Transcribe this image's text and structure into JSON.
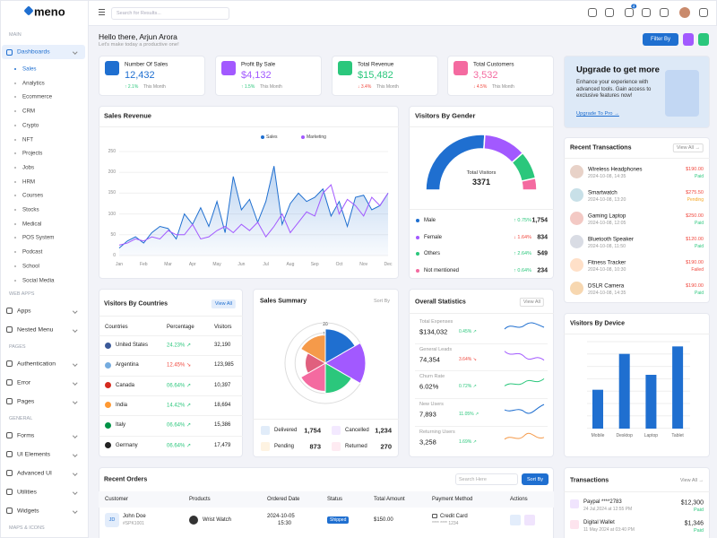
{
  "sidebar": {
    "logo": "meno",
    "groups": [
      {
        "heading": "MAIN",
        "items": [
          "Dashboards"
        ],
        "submenu": [
          "Sales",
          "Analytics",
          "Ecommerce",
          "CRM",
          "Crypto",
          "NFT",
          "Projects",
          "Jobs",
          "HRM",
          "Courses",
          "Stocks",
          "Medical",
          "POS System",
          "Podcast",
          "School",
          "Social Media"
        ]
      },
      {
        "heading": "WEB APPS",
        "items": [
          "Apps",
          "Nested Menu"
        ]
      },
      {
        "heading": "PAGES",
        "items": [
          "Authentication",
          "Error",
          "Pages"
        ]
      },
      {
        "heading": "GENERAL",
        "items": [
          "Forms",
          "UI Elements",
          "Advanced UI",
          "Utilities",
          "Widgets"
        ]
      },
      {
        "heading": "MAPS & ICONS",
        "items": []
      }
    ]
  },
  "header": {
    "search_placeholder": "Search for Results...",
    "notification_count": 4
  },
  "greeting": {
    "title": "Hello there, Arjun Arora",
    "subtitle": "Let's make today a productive one!",
    "filter": "Filter By"
  },
  "stats": [
    {
      "title": "Number Of Sales",
      "value": "12,432",
      "change": "↑ 2.1%",
      "period": "This Month",
      "color": "#1f6fd0",
      "change_color": "#2bc77c"
    },
    {
      "title": "Profit By Sale",
      "value": "$4,132",
      "change": "↑ 1.5%",
      "period": "This Month",
      "color": "#a259ff",
      "change_color": "#2bc77c"
    },
    {
      "title": "Total Revenue",
      "value": "$15,482",
      "change": "↓ 3.4%",
      "period": "This Month",
      "color": "#2bc77c",
      "change_color": "#f0483e"
    },
    {
      "title": "Total Customers",
      "value": "3,532",
      "change": "↓ 4.5%",
      "period": "This Month",
      "color": "#f46aa0",
      "change_color": "#f0483e"
    }
  ],
  "upgrade": {
    "title": "Upgrade to get more",
    "text": "Enhance your experience with advanced tools. Gain access to exclusive features now!",
    "link": "Upgrade To Pro →"
  },
  "sales_revenue": {
    "type": "line",
    "title": "Sales Revenue",
    "categories": [
      "Jan",
      null,
      null,
      "Feb",
      null,
      null,
      "Mar",
      null,
      null,
      "Apr",
      null,
      null,
      "May",
      null,
      null,
      "Jun",
      null,
      null,
      "Jul",
      null,
      null,
      "Aug",
      null,
      null,
      "Sep",
      null,
      null,
      "Oct",
      null,
      null,
      "Nov",
      null,
      null,
      "Dec"
    ],
    "series": [
      {
        "name": "Sales",
        "color": "#1f6fd0",
        "values": [
          18,
          35,
          45,
          30,
          55,
          70,
          65,
          40,
          100,
          75,
          115,
          70,
          130,
          55,
          190,
          110,
          135,
          80,
          130,
          215,
          75,
          125,
          150,
          130,
          140,
          160,
          95,
          130,
          70,
          140,
          145,
          110,
          120,
          150
        ]
      },
      {
        "name": "Marketing",
        "color": "#a259ff",
        "values": [
          25,
          30,
          40,
          35,
          45,
          40,
          60,
          50,
          50,
          75,
          40,
          45,
          60,
          70,
          55,
          75,
          60,
          80,
          45,
          70,
          100,
          55,
          80,
          105,
          95,
          150,
          170,
          100,
          135,
          120,
          95,
          140,
          120,
          150
        ]
      }
    ],
    "ylim": [
      0,
      250
    ],
    "yticks": [
      0,
      50,
      100,
      150,
      200,
      250
    ],
    "grid": true
  },
  "visitors_by_gender": {
    "type": "gauge",
    "title": "Visitors By Gender",
    "total_label": "Total Visitors",
    "total": 3371,
    "categories": [
      "Male",
      "Female",
      "Others",
      "Not mentioned"
    ],
    "values": [
      1754,
      834,
      549,
      234
    ],
    "value_labels": [
      "1,754",
      "834",
      "549",
      "234"
    ],
    "changes": [
      "↑ 0.75%",
      "↓ 1.64%",
      "↑ 2.64%",
      "↑ 0.64%"
    ],
    "change_colors": [
      "#2bc77c",
      "#f0483e",
      "#2bc77c",
      "#2bc77c"
    ],
    "colors": [
      "#1f6fd0",
      "#a259ff",
      "#2bc77c",
      "#f46aa0"
    ]
  },
  "recent_transactions": {
    "title": "Recent Transactions",
    "action": "View All →",
    "items": [
      {
        "name": "Wireless Headphones",
        "time": "2024-10-08, 14:35",
        "amount": "$190.00",
        "status": "Paid",
        "status_color": "#2bc77c"
      },
      {
        "name": "Smartwatch",
        "time": "2024-10-08, 13:20",
        "amount": "$275.50",
        "status": "Pending",
        "status_color": "#f5a623"
      },
      {
        "name": "Gaming Laptop",
        "time": "2024-10-08, 12:05",
        "amount": "$250.00",
        "status": "Paid",
        "status_color": "#2bc77c"
      },
      {
        "name": "Bluetooth Speaker",
        "time": "2024-10-08, 11:50",
        "amount": "$120.00",
        "status": "Paid",
        "status_color": "#2bc77c"
      },
      {
        "name": "Fitness Tracker",
        "time": "2024-10-08, 10:30",
        "amount": "$190.00",
        "status": "Failed",
        "status_color": "#f0483e"
      },
      {
        "name": "DSLR Camera",
        "time": "2024-10-08, 14:35",
        "amount": "$190.00",
        "status": "Paid",
        "status_color": "#2bc77c"
      }
    ]
  },
  "visitors_by_countries": {
    "title": "Visitors By Countries",
    "action": "View All",
    "columns": [
      "Countries",
      "Percentage",
      "Visitors"
    ],
    "rows": [
      [
        "United States",
        "24.23% ↗",
        "32,190"
      ],
      [
        "Argentina",
        "12.45% ↘",
        "123,985"
      ],
      [
        "Canada",
        "06.64% ↗",
        "10,397"
      ],
      [
        "India",
        "14.42% ↗",
        "18,694"
      ],
      [
        "Italy",
        "06.64% ↗",
        "15,386"
      ],
      [
        "Germany",
        "06.64% ↗",
        "17,479"
      ]
    ],
    "percentage_colors": [
      "#2bc77c",
      "#f0483e",
      "#2bc77c",
      "#2bc77c",
      "#2bc77c",
      "#2bc77c"
    ]
  },
  "sales_summary": {
    "type": "polar",
    "title": "Sales Summary",
    "action": "Sort By",
    "values": [
      17,
      20,
      15,
      14,
      10,
      14
    ],
    "colors": [
      "#1f6fd0",
      "#a259ff",
      "#2bc77c",
      "#f46aa0",
      "#e0607e",
      "#f59a4a"
    ],
    "rlim": [
      0,
      20
    ],
    "rticks": [
      15,
      20
    ],
    "legend": [
      {
        "label": "Delivered",
        "value": "1,754"
      },
      {
        "label": "Cancelled",
        "value": "1,234"
      },
      {
        "label": "Pending",
        "value": "873"
      },
      {
        "label": "Returned",
        "value": "270"
      }
    ]
  },
  "overall_statistics": {
    "title": "Overall Statistics",
    "action": "View All",
    "items": [
      {
        "label": "Total Expenses",
        "value": "$134,032",
        "change": "0.45% ↗",
        "color": "#2bc77c"
      },
      {
        "label": "General Leads",
        "value": "74,354",
        "change": "3.64% ↘",
        "color": "#f0483e"
      },
      {
        "label": "Churn Rate",
        "value": "6.02%",
        "change": "0.72% ↗",
        "color": "#2bc77c"
      },
      {
        "label": "New Users",
        "value": "7,893",
        "change": "11.05% ↗",
        "color": "#2bc77c"
      },
      {
        "label": "Returning Users",
        "value": "3,258",
        "change": "1.69% ↗",
        "color": "#2bc77c"
      }
    ]
  },
  "visitors_by_device": {
    "type": "bar",
    "title": "Visitors By Device",
    "categories": [
      "Mobile",
      "Desktop",
      "Laptop",
      "Tablet"
    ],
    "values": [
      26,
      50,
      36,
      55
    ],
    "color": "#1f6fd0",
    "ylim": [
      0,
      60
    ]
  },
  "recent_orders": {
    "title": "Recent Orders",
    "search_placeholder": "Search Here",
    "sort": "Sort By",
    "columns": [
      "Customer",
      "Products",
      "Ordered Date",
      "Status",
      "Total Amount",
      "Payment Method",
      "Actions"
    ],
    "rows": [
      {
        "initials": "JD",
        "customer": "John Doe",
        "id": "#SPK1001",
        "product": "Wrist Watch",
        "date": "2024-10-05",
        "time": "15:30",
        "status": "Shipped",
        "amount": "$150.00",
        "payment": "Credit Card",
        "card": "**** **** 1234"
      }
    ]
  },
  "transactions": {
    "title": "Transactions",
    "action": "View All →",
    "items": [
      {
        "name": "Paypal ****2783",
        "time": "24 Jul,2024 at 12:55 PM",
        "amount": "$12,300",
        "status": "Paid"
      },
      {
        "name": "Digital Wallet",
        "time": "11 May 2024 at 03:40 PM",
        "amount": "$1,346",
        "status": "Paid"
      }
    ]
  }
}
